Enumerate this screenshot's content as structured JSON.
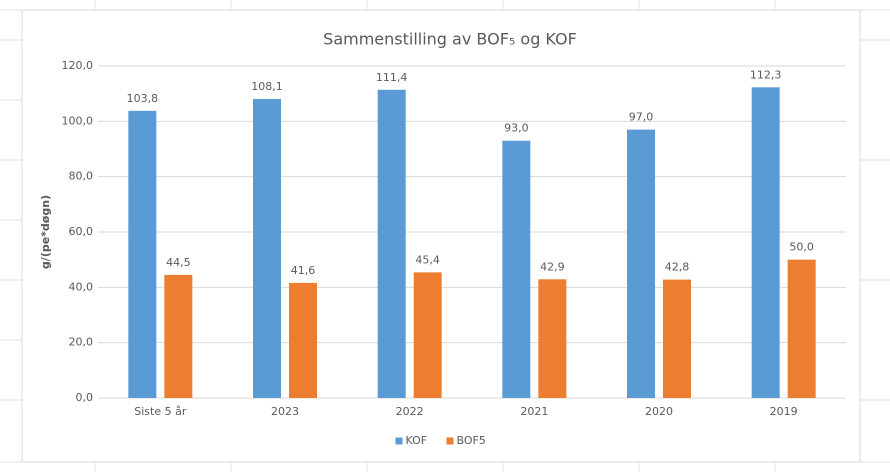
{
  "chart_data": {
    "type": "bar",
    "title": "Sammenstilling av BOF₅ og KOF",
    "y_label": "g/(pe*døgn)",
    "categories": [
      "Siste 5 år",
      "2023",
      "2022",
      "2021",
      "2020",
      "2019"
    ],
    "series": [
      {
        "name": "KOF",
        "color": "#5b9bd5",
        "values": [
          103.8,
          108.1,
          111.4,
          93.0,
          97.0,
          112.3
        ],
        "value_labels": [
          "103,8",
          "108,1",
          "111,4",
          "93,0",
          "97,0",
          "112,3"
        ]
      },
      {
        "name": "BOF5",
        "color": "#ed7d31",
        "values": [
          44.5,
          41.6,
          45.4,
          42.9,
          42.8,
          50.0
        ],
        "value_labels": [
          "44,5",
          "41,6",
          "45,4",
          "42,9",
          "42,8",
          "50,0"
        ]
      }
    ],
    "ylim": [
      0,
      120
    ],
    "yticks": [
      {
        "value": 0,
        "label": "0,0"
      },
      {
        "value": 20,
        "label": "20,0"
      },
      {
        "value": 40,
        "label": "40,0"
      },
      {
        "value": 60,
        "label": "60,0"
      },
      {
        "value": 80,
        "label": "80,0"
      },
      {
        "value": 100,
        "label": "100,0"
      },
      {
        "value": 120,
        "label": "120,0"
      }
    ],
    "grid": true,
    "legend": "bottom"
  }
}
